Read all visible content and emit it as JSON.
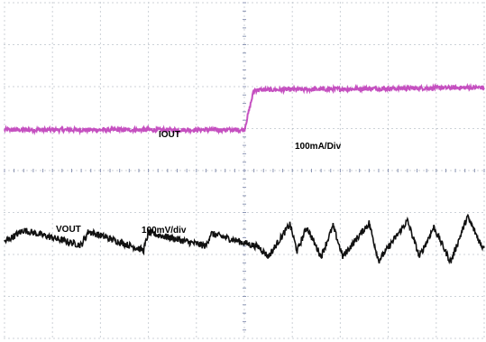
{
  "colors": {
    "background": "#ffffff",
    "grid": "#9aa4b0",
    "center_axis": "#8c96b4",
    "iout_trace": "#c550c0",
    "vout_trace": "#111111"
  },
  "chart_data": {
    "type": "line",
    "title": "",
    "xlabel": "",
    "ylabel": "",
    "grid": true,
    "grid_divisions": {
      "x": 10,
      "y": 8
    },
    "xlim": [
      0,
      10
    ],
    "ylim": [
      0,
      8
    ],
    "trigger_division": 5.0,
    "annotations": {
      "iout_name": "IOUT",
      "iout_scale": "100mA/Div",
      "vout_name": "VOUT",
      "vout_scale": "100mV/div"
    },
    "series": [
      {
        "name": "IOUT",
        "step_time": 5.0,
        "x": [
          0.0,
          5.0,
          5.2,
          10.0
        ],
        "values": [
          4.97,
          4.97,
          5.92,
          5.98
        ],
        "noise": 0.05
      },
      {
        "name": "VOUT",
        "x": [
          0.0,
          0.4,
          1.6,
          1.75,
          2.9,
          3.0,
          4.2,
          4.3,
          5.3,
          5.5,
          5.95,
          6.1,
          6.3,
          6.6,
          6.85,
          7.05,
          7.6,
          7.8,
          8.4,
          8.65,
          8.95,
          9.3,
          9.65,
          9.95
        ],
        "values": [
          2.3,
          2.58,
          2.22,
          2.55,
          2.1,
          2.52,
          2.2,
          2.5,
          2.18,
          1.95,
          2.72,
          2.08,
          2.65,
          1.95,
          2.68,
          1.95,
          2.75,
          1.85,
          2.8,
          1.95,
          2.65,
          1.82,
          2.9,
          2.2
        ],
        "noise": 0.08
      }
    ]
  }
}
